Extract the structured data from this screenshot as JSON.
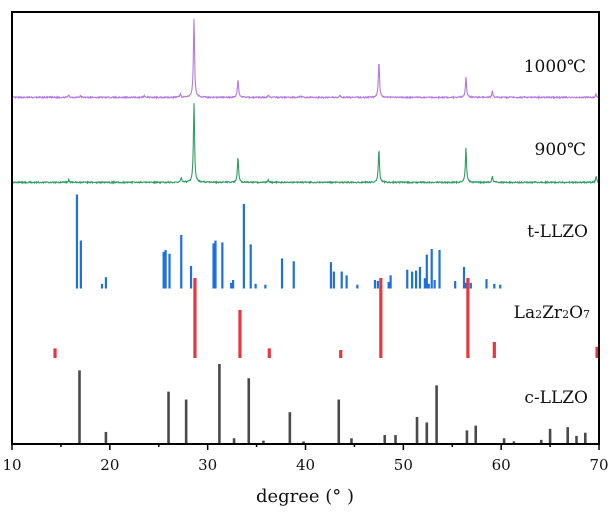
{
  "chart_data": {
    "type": "line",
    "title": "",
    "xlabel": "degree (° )",
    "ylabel": "",
    "xlim": [
      10,
      70
    ],
    "x_ticks": [
      "10",
      "20",
      "30",
      "40",
      "50",
      "60",
      "70"
    ],
    "grid": false,
    "colors": {
      "t1000": "#b579e0",
      "t900": "#2f9e62",
      "tLLZO": "#1f6fdc",
      "LZO": "#e8363e",
      "cLLZO": "#4a4a4a",
      "axis": "#000000"
    },
    "series": [
      {
        "name": "1000℃",
        "kind": "pattern",
        "peaks": [
          [
            15.8,
            3
          ],
          [
            17.0,
            2
          ],
          [
            23.5,
            2
          ],
          [
            27.2,
            4
          ],
          [
            28.6,
            100
          ],
          [
            33.1,
            23
          ],
          [
            36.2,
            3
          ],
          [
            39.5,
            2
          ],
          [
            43.5,
            2
          ],
          [
            47.5,
            45
          ],
          [
            56.4,
            27
          ],
          [
            59.1,
            8
          ],
          [
            69.7,
            4
          ]
        ]
      },
      {
        "name": "900℃",
        "kind": "pattern",
        "peaks": [
          [
            15.8,
            3
          ],
          [
            27.3,
            6
          ],
          [
            28.6,
            100
          ],
          [
            33.1,
            32
          ],
          [
            36.2,
            3
          ],
          [
            47.5,
            42
          ],
          [
            56.4,
            44
          ],
          [
            59.1,
            8
          ],
          [
            69.7,
            7
          ]
        ]
      },
      {
        "name": "t-LLZO",
        "kind": "sticks",
        "peaks": [
          [
            16.64,
            100
          ],
          [
            17.04,
            51
          ],
          [
            19.2,
            5
          ],
          [
            19.6,
            12
          ],
          [
            25.5,
            39
          ],
          [
            25.7,
            41
          ],
          [
            26.1,
            37
          ],
          [
            27.3,
            57
          ],
          [
            28.3,
            24
          ],
          [
            30.6,
            48
          ],
          [
            30.8,
            51
          ],
          [
            31.5,
            49
          ],
          [
            32.4,
            6
          ],
          [
            32.6,
            9
          ],
          [
            33.7,
            90
          ],
          [
            34.4,
            47
          ],
          [
            34.9,
            5
          ],
          [
            35.9,
            4
          ],
          [
            37.6,
            32
          ],
          [
            38.8,
            29
          ],
          [
            42.6,
            28
          ],
          [
            42.9,
            18
          ],
          [
            43.7,
            18
          ],
          [
            44.2,
            14
          ],
          [
            45.3,
            4
          ],
          [
            47.1,
            9
          ],
          [
            47.4,
            8
          ],
          [
            48.5,
            7
          ],
          [
            48.7,
            14
          ],
          [
            50.4,
            20
          ],
          [
            50.9,
            18
          ],
          [
            51.3,
            19
          ],
          [
            51.7,
            23
          ],
          [
            52.2,
            11
          ],
          [
            52.4,
            36
          ],
          [
            52.6,
            5
          ],
          [
            52.9,
            42
          ],
          [
            53.2,
            9
          ],
          [
            53.7,
            41
          ],
          [
            55.3,
            8
          ],
          [
            56.2,
            23
          ],
          [
            56.4,
            6
          ],
          [
            56.9,
            6
          ],
          [
            58.5,
            10
          ],
          [
            59.3,
            5
          ],
          [
            59.9,
            4
          ]
        ]
      },
      {
        "name": "La2Zr2O7",
        "kind": "sticks",
        "label_parts": [
          "La",
          "2",
          "Zr",
          "2",
          "O",
          "7"
        ],
        "peaks": [
          [
            14.4,
            12
          ],
          [
            28.7,
            100
          ],
          [
            33.3,
            60
          ],
          [
            36.3,
            12
          ],
          [
            43.6,
            10
          ],
          [
            47.7,
            100
          ],
          [
            56.6,
            100
          ],
          [
            59.3,
            20
          ],
          [
            69.8,
            14
          ]
        ]
      },
      {
        "name": "c-LLZO",
        "kind": "sticks",
        "peaks": [
          [
            16.9,
            92
          ],
          [
            19.6,
            14
          ],
          [
            26.0,
            65
          ],
          [
            27.8,
            55
          ],
          [
            31.2,
            100
          ],
          [
            32.7,
            6
          ],
          [
            34.2,
            82
          ],
          [
            35.7,
            3
          ],
          [
            38.4,
            39
          ],
          [
            39.8,
            2
          ],
          [
            43.4,
            55
          ],
          [
            44.7,
            6
          ],
          [
            48.1,
            10
          ],
          [
            49.2,
            10
          ],
          [
            51.4,
            33
          ],
          [
            52.4,
            26
          ],
          [
            53.4,
            73
          ],
          [
            56.5,
            16
          ],
          [
            57.4,
            22
          ],
          [
            60.3,
            6
          ],
          [
            61.3,
            2
          ],
          [
            64.1,
            4
          ],
          [
            65.0,
            18
          ],
          [
            66.8,
            20
          ],
          [
            67.7,
            9
          ],
          [
            68.6,
            13
          ]
        ]
      }
    ]
  }
}
